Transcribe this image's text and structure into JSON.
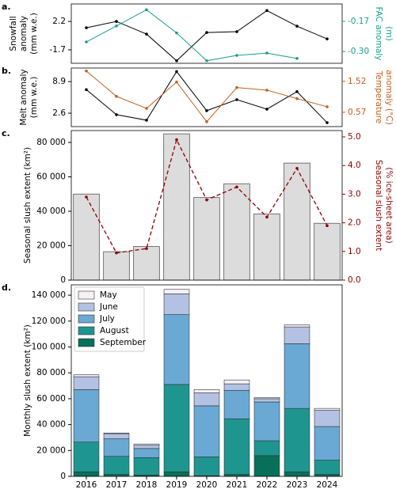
{
  "chart_data": [
    {
      "type": "line",
      "label": "a.",
      "ylabel": [
        "Snowfall",
        "anomaly",
        "(mm w.e.)"
      ],
      "y2label": [
        "FAC anomaly",
        "(m)"
      ],
      "ylim": [
        -3.55,
        4.6
      ],
      "yticks": [
        -1.7,
        2.2
      ],
      "y2lim": [
        -0.351,
        -0.095
      ],
      "y2ticks": [
        {
          "value": -0.3,
          "label": "-0.30"
        },
        -0.17
      ],
      "series": [
        {
          "color": "#000000",
          "values": [
            1.33,
            2.2,
            0.46,
            -3.2,
            0.68,
            0.79,
            3.7,
            1.55,
            -0.2
          ]
        },
        {
          "color": "#1a9e8a",
          "axis": "y2",
          "values": [
            -0.259,
            -0.19,
            -0.12,
            -0.22,
            -0.34,
            -0.317,
            -0.307,
            -0.33,
            null
          ]
        }
      ]
    },
    {
      "type": "line",
      "label": "b.",
      "ylabel": [
        "Melt anomaly",
        "(mm w.e.)"
      ],
      "y2label": [
        "Temperature",
        "anomaly (°C)"
      ],
      "ylim": [
        -0.08,
        11.6
      ],
      "yticks": [
        2.6,
        8.9
      ],
      "y2lim": [
        0.13,
        1.93
      ],
      "y2ticks": [
        0.57,
        1.52
      ],
      "series": [
        {
          "color": "#000000",
          "values": [
            7.3,
            2.3,
            1.2,
            10.9,
            3.1,
            5.3,
            3.4,
            6.9,
            0.7
          ]
        },
        {
          "color": "#c0601f",
          "axis": "y2",
          "values": [
            1.84,
            1.06,
            0.69,
            1.5,
            0.28,
            1.33,
            1.25,
            0.99,
            0.74
          ]
        }
      ]
    },
    {
      "type": "combo",
      "label": "c.",
      "ylabel": [
        "Seasonal slush extent (km²)"
      ],
      "y2label": [
        "Seasonal slush extent",
        "(% ice-sheet area)"
      ],
      "ylim": [
        0,
        86900
      ],
      "yticks": [
        0,
        {
          "value": 20000,
          "label": "20 000"
        },
        {
          "value": 40000,
          "label": "40 000"
        },
        {
          "value": 60000,
          "label": "60 000"
        },
        {
          "value": 80000,
          "label": "80 000"
        }
      ],
      "y2lim": [
        0,
        5.22
      ],
      "y2ticks": [
        {
          "value": 0,
          "label": "0.0"
        },
        {
          "value": 1,
          "label": "1.0"
        },
        {
          "value": 2,
          "label": "2.0"
        },
        {
          "value": 3,
          "label": "3.0"
        },
        {
          "value": 4,
          "label": "4.0"
        },
        {
          "value": 5,
          "label": "5.0"
        }
      ],
      "series": [
        {
          "mark": "bar",
          "color": "#dcdcdc",
          "edgecolor": "#555555",
          "values": [
            50000,
            16500,
            19500,
            85000,
            48000,
            56000,
            38500,
            68000,
            33000
          ]
        },
        {
          "mark": "line",
          "linestyle": "dashed",
          "color": "#8b0000",
          "axis": "y2",
          "values": [
            2.9,
            0.95,
            1.1,
            4.9,
            2.8,
            3.25,
            2.2,
            3.9,
            1.9
          ]
        }
      ]
    },
    {
      "type": "stacked-bar",
      "label": "d.",
      "ylabel": [
        "Monthly slush extent (km²)"
      ],
      "categories": [
        "2016",
        "2017",
        "2018",
        "2019",
        "2020",
        "2021",
        "2022",
        "2023",
        "2024"
      ],
      "ylim": [
        0,
        148000
      ],
      "yticks": [
        0,
        {
          "value": 20000,
          "label": "20 000"
        },
        {
          "value": 40000,
          "label": "40 000"
        },
        {
          "value": 60000,
          "label": "60 000"
        },
        {
          "value": 80000,
          "label": "80 000"
        },
        {
          "value": 100000,
          "label": "100 000"
        },
        {
          "value": 120000,
          "label": "120 000"
        },
        {
          "value": 140000,
          "label": "140 000"
        }
      ],
      "legend": "upper left",
      "edgecolor": "#333333",
      "series": [
        {
          "name": "May",
          "color": "#f3f0f7",
          "values": [
            1500,
            500,
            1000,
            3500,
            2500,
            3000,
            1000,
            1500,
            1500
          ]
        },
        {
          "name": "June",
          "color": "#b3c2e3",
          "values": [
            10000,
            4000,
            2500,
            16000,
            10000,
            5000,
            2500,
            13000,
            12500
          ]
        },
        {
          "name": "July",
          "color": "#6aa9d4",
          "values": [
            40500,
            13500,
            7000,
            54000,
            39500,
            22000,
            30000,
            50000,
            26000
          ]
        },
        {
          "name": "August",
          "color": "#1f9590",
          "values": [
            23000,
            14000,
            13500,
            67500,
            14500,
            43000,
            11500,
            49000,
            11000
          ]
        },
        {
          "name": "September",
          "color": "#08705a",
          "values": [
            3500,
            1500,
            1000,
            3500,
            500,
            1500,
            16000,
            3500,
            1500
          ]
        }
      ]
    }
  ]
}
